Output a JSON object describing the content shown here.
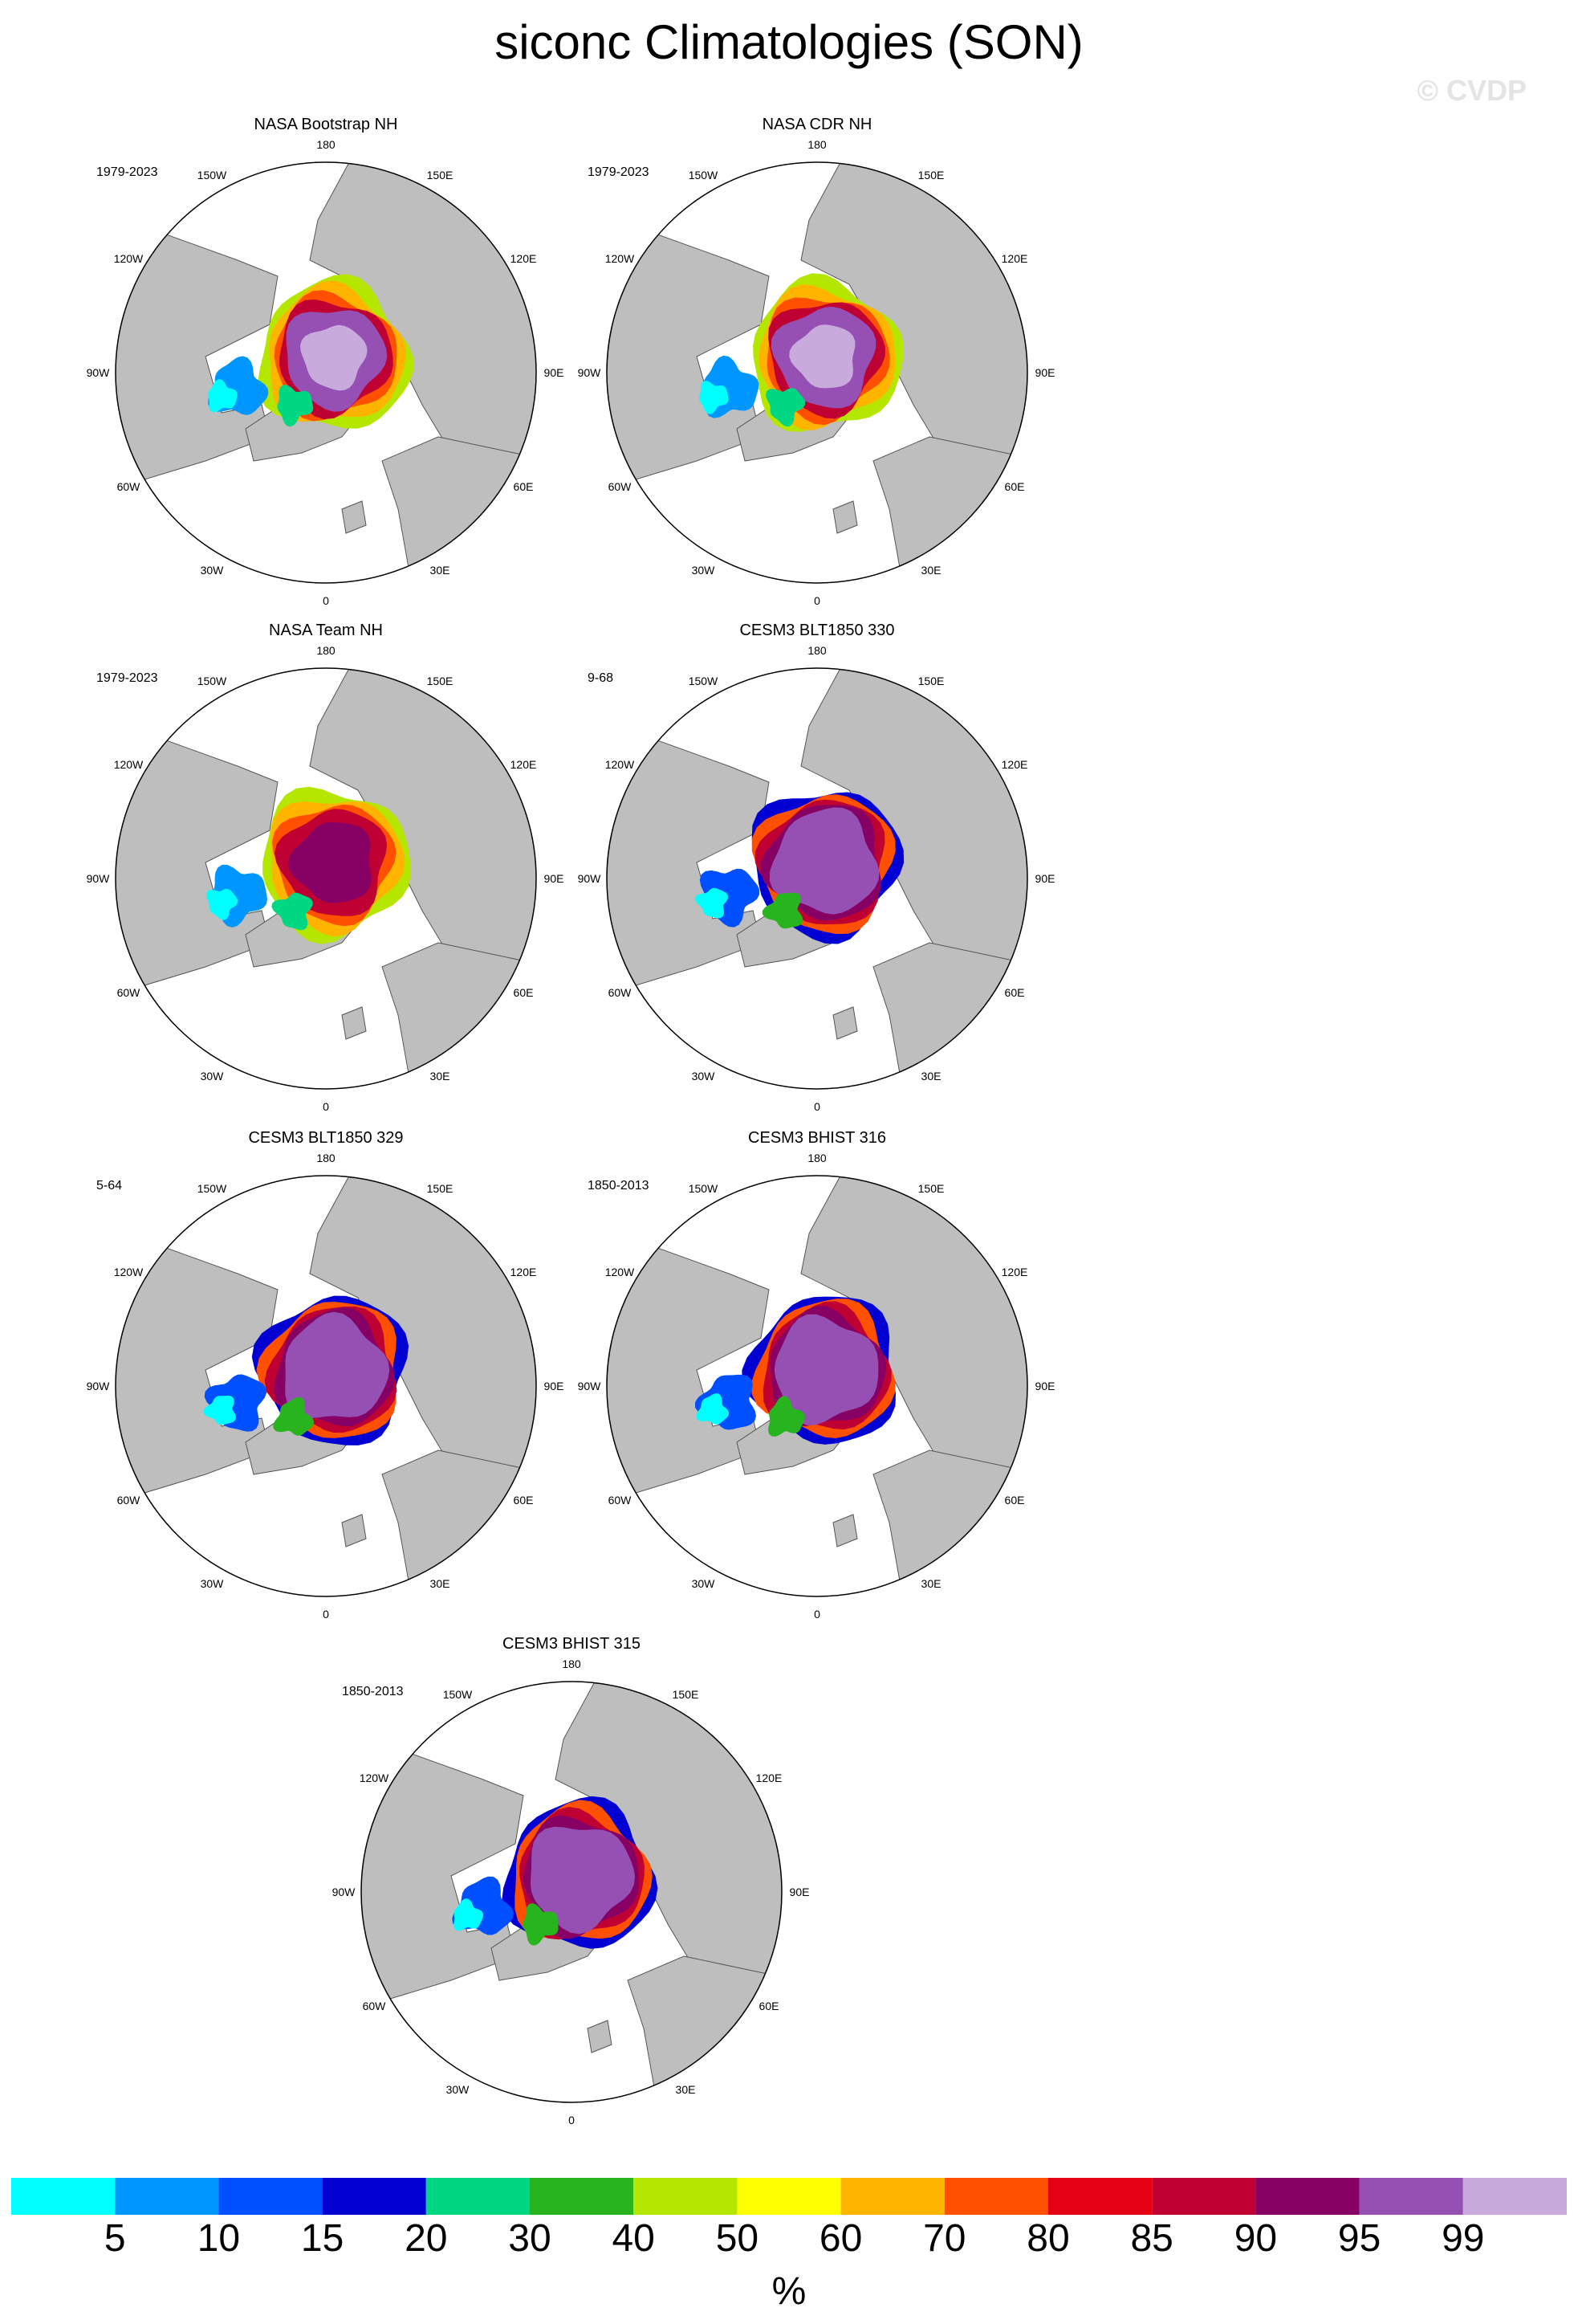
{
  "title": "siconc Climatologies (SON)",
  "watermark": "© CVDP",
  "colors": {
    "land": "#bebebe",
    "ocean": "#ffffff",
    "outline": "#555555"
  },
  "longitude_labels": [
    "180",
    "150E",
    "120E",
    "90E",
    "60E",
    "30E",
    "0",
    "30W",
    "60W",
    "90W",
    "120W",
    "150W"
  ],
  "panels": [
    {
      "name": "NASA Bootstrap NH",
      "years": "1979-2023",
      "style": "obs1"
    },
    {
      "name": "NASA CDR NH",
      "years": "1979-2023",
      "style": "obs1"
    },
    {
      "name": "NASA Team NH",
      "years": "1979-2023",
      "style": "obs2"
    },
    {
      "name": "CESM3 BLT1850 330",
      "years": "9-68",
      "style": "model"
    },
    {
      "name": "CESM3 BLT1850 329",
      "years": "5-64",
      "style": "model"
    },
    {
      "name": "CESM3 BHIST 316",
      "years": "1850-2013",
      "style": "model"
    },
    {
      "name": "CESM3 BHIST 315",
      "years": "1850-2013",
      "style": "model"
    }
  ],
  "colorbar": {
    "units": "%",
    "labels": [
      "5",
      "10",
      "15",
      "20",
      "30",
      "40",
      "50",
      "60",
      "70",
      "80",
      "85",
      "90",
      "95",
      "99"
    ],
    "colors": [
      "#00ffff",
      "#0096ff",
      "#0050ff",
      "#0000d2",
      "#00d782",
      "#28b41e",
      "#b4e600",
      "#ffff00",
      "#ffb400",
      "#ff5000",
      "#e60014",
      "#be0032",
      "#870064",
      "#9650b4",
      "#c8aadc"
    ]
  }
}
